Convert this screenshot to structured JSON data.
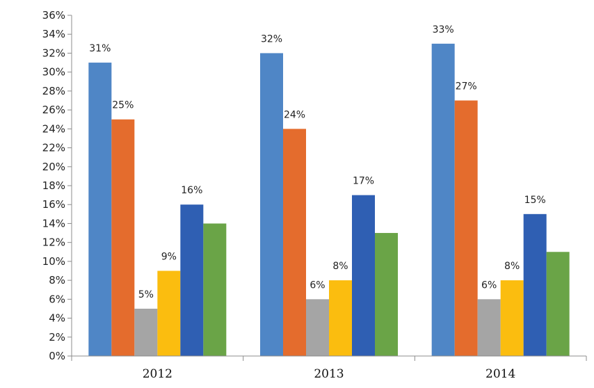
{
  "chart_data": {
    "type": "bar",
    "title": "",
    "xlabel": "",
    "ylabel": "",
    "ylim": [
      0,
      36
    ],
    "ytick_step": 2,
    "ytick_suffix": "%",
    "grid": false,
    "legend": "none",
    "categories": [
      "2012",
      "2013",
      "2014"
    ],
    "series": [
      {
        "name": "series-1",
        "color": "#4f86c6",
        "values": [
          31,
          32,
          33
        ],
        "labels": [
          "31%",
          "32%",
          "33%"
        ]
      },
      {
        "name": "series-2",
        "color": "#e46c2d",
        "values": [
          25,
          24,
          27
        ],
        "labels": [
          "25%",
          "24%",
          "27%"
        ]
      },
      {
        "name": "series-3",
        "color": "#a5a5a5",
        "values": [
          5,
          6,
          6
        ],
        "labels": [
          "5%",
          "6%",
          "6%"
        ]
      },
      {
        "name": "series-4",
        "color": "#fbbd0f",
        "values": [
          9,
          8,
          8
        ],
        "labels": [
          "9%",
          "8%",
          "8%"
        ]
      },
      {
        "name": "series-5",
        "color": "#2f5fb3",
        "values": [
          16,
          17,
          15
        ],
        "labels": [
          "16%",
          "17%",
          "15%"
        ]
      },
      {
        "name": "series-6",
        "color": "#6aa447",
        "values": [
          14,
          13,
          11
        ],
        "labels": [
          null,
          null,
          null
        ]
      }
    ]
  }
}
